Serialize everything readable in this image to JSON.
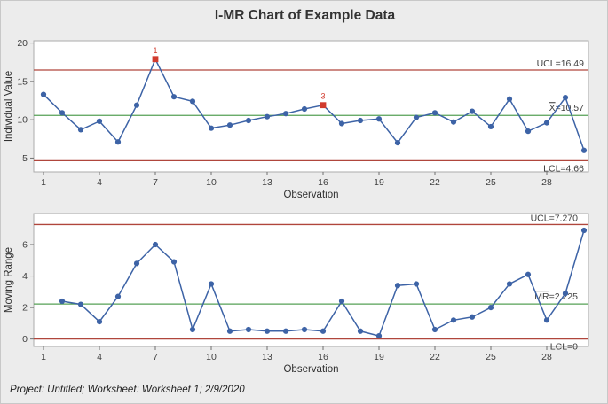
{
  "title": "I-MR Chart of Example Data",
  "footer": "Project: Untitled; Worksheet: Worksheet 1; 2/9/2020",
  "colors": {
    "background": "#ECECEC",
    "panel": "#FFFFFF",
    "panel_border": "#ABABAB",
    "series_blue": "#3D63A6",
    "limit_red": "#B0463C",
    "center_green": "#56A156",
    "out_of_control_red": "#D13B2E",
    "text": "#3F3F3F",
    "tick": "#707070"
  },
  "chart_data": [
    {
      "type": "line",
      "name": "individuals-chart",
      "ylabel": "Individual Value",
      "xlabel": "Observation",
      "x_ticks": [
        1,
        4,
        7,
        10,
        13,
        16,
        19,
        22,
        25,
        28
      ],
      "y_ticks": [
        5,
        10,
        15,
        20
      ],
      "ylim": [
        3.2,
        20.3
      ],
      "grid": false,
      "x": [
        1,
        2,
        3,
        4,
        5,
        6,
        7,
        8,
        9,
        10,
        11,
        12,
        13,
        14,
        15,
        16,
        17,
        18,
        19,
        20,
        21,
        22,
        23,
        24,
        25,
        26,
        27,
        28,
        29,
        30
      ],
      "values": [
        13.3,
        10.9,
        8.7,
        9.8,
        7.1,
        11.9,
        17.9,
        13.0,
        12.4,
        8.9,
        9.3,
        9.9,
        10.4,
        10.8,
        11.4,
        11.9,
        9.5,
        9.9,
        10.1,
        7.0,
        10.3,
        10.9,
        9.7,
        11.1,
        9.1,
        12.7,
        8.5,
        9.6,
        12.9,
        6.0
      ],
      "ucl": {
        "value": 16.49,
        "label": "UCL=16.49",
        "bar_chars": 0
      },
      "center": {
        "value": 10.57,
        "label": "X=10.57",
        "bar_chars": 1
      },
      "lcl": {
        "value": 4.66,
        "label": "LCL=4.66",
        "bar_chars": 0
      },
      "out_of_control": [
        {
          "x": 7,
          "value": 17.9,
          "label": "1"
        },
        {
          "x": 16,
          "value": 11.9,
          "label": "3"
        }
      ]
    },
    {
      "type": "line",
      "name": "moving-range-chart",
      "ylabel": "Moving Range",
      "xlabel": "Observation",
      "x_ticks": [
        1,
        4,
        7,
        10,
        13,
        16,
        19,
        22,
        25,
        28
      ],
      "y_ticks": [
        0,
        2,
        4,
        6
      ],
      "ylim": [
        -0.47,
        7.97
      ],
      "grid": false,
      "x": [
        2,
        3,
        4,
        5,
        6,
        7,
        8,
        9,
        10,
        11,
        12,
        13,
        14,
        15,
        16,
        17,
        18,
        19,
        20,
        21,
        22,
        23,
        24,
        25,
        26,
        27,
        28,
        29,
        30
      ],
      "values": [
        2.4,
        2.2,
        1.1,
        2.7,
        4.8,
        6.0,
        4.9,
        0.6,
        3.5,
        0.5,
        0.6,
        0.5,
        0.5,
        0.6,
        0.5,
        2.4,
        0.5,
        0.2,
        3.4,
        3.5,
        0.6,
        1.2,
        1.4,
        2.0,
        3.5,
        4.1,
        1.2,
        2.9,
        6.9
      ],
      "ucl": {
        "value": 7.27,
        "label": "UCL=7.270",
        "bar_chars": 0
      },
      "center": {
        "value": 2.225,
        "label": "MR=2.225",
        "bar_chars": 2
      },
      "lcl": {
        "value": 0,
        "label": "LCL=0",
        "bar_chars": 0
      },
      "out_of_control": []
    }
  ]
}
